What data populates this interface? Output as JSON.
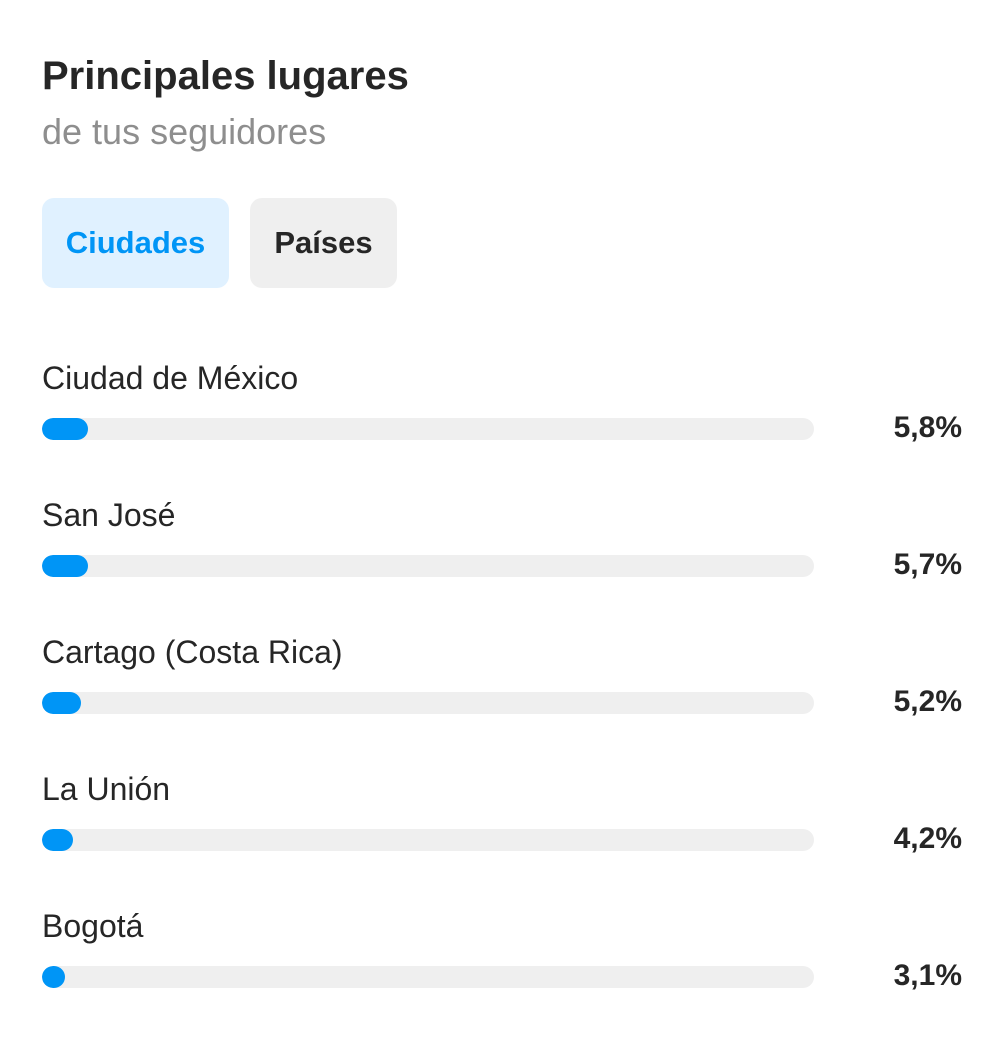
{
  "header": {
    "title": "Principales lugares",
    "subtitle": "de tus seguidores"
  },
  "tabs": [
    {
      "label": "Ciudades",
      "active": true
    },
    {
      "label": "Países",
      "active": false
    }
  ],
  "colors": {
    "accent": "#0095f6",
    "active_tab_bg": "#e0f1ff",
    "inactive_tab_bg": "#efefef",
    "track": "#efefef"
  },
  "locations": [
    {
      "name": "Ciudad de México",
      "percent_label": "5,8%",
      "fill_percent": 6
    },
    {
      "name": "San José",
      "percent_label": "5,7%",
      "fill_percent": 6
    },
    {
      "name": "Cartago (Costa Rica)",
      "percent_label": "5,2%",
      "fill_percent": 5
    },
    {
      "name": "La Unión",
      "percent_label": "4,2%",
      "fill_percent": 4
    },
    {
      "name": "Bogotá",
      "percent_label": "3,1%",
      "fill_percent": 3
    }
  ]
}
